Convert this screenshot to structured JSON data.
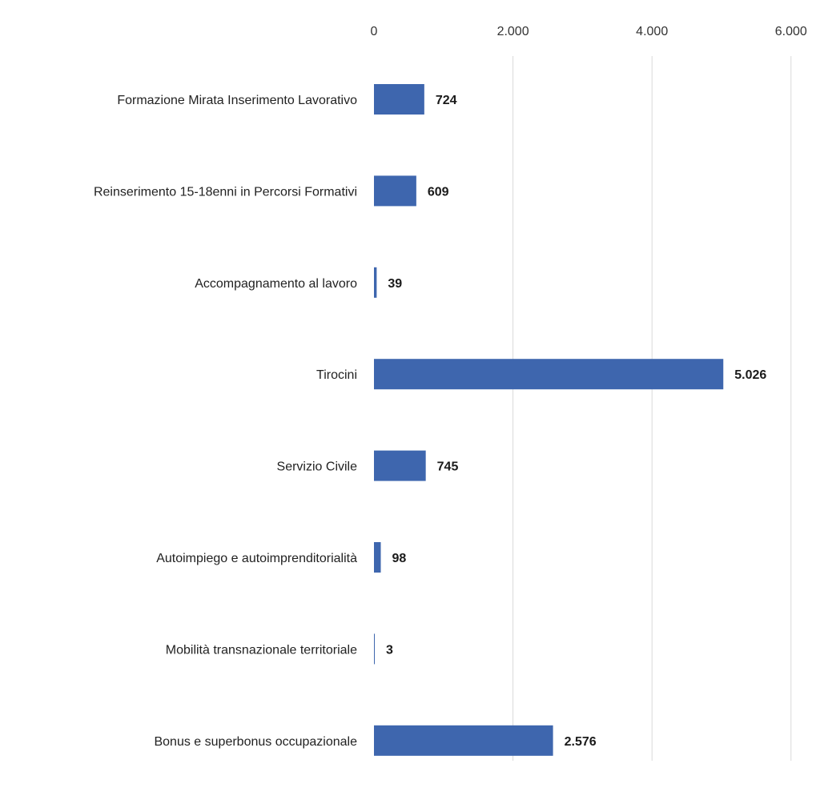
{
  "chart_data": {
    "type": "bar",
    "orientation": "horizontal",
    "categories": [
      "Formazione Mirata Inserimento Lavorativo",
      "Reinserimento 15-18enni in Percorsi Formativi",
      "Accompagnamento al lavoro",
      "Tirocini",
      "Servizio Civile",
      "Autoimpiego e autoimprenditorialità",
      "Mobilità transnazionale territoriale",
      "Bonus e superbonus occupazionale"
    ],
    "values": [
      724,
      609,
      39,
      5026,
      745,
      98,
      3,
      2576
    ],
    "data_labels": [
      "724",
      "609",
      "39",
      "5.026",
      "745",
      "98",
      "3",
      "2.576"
    ],
    "xlim": [
      0,
      6000
    ],
    "x_ticks": [
      0,
      2000,
      4000,
      6000
    ],
    "x_tick_labels": [
      "0",
      "2.000",
      "4.000",
      "6.000"
    ],
    "x_axis_position": "top",
    "grid": true,
    "legend": "none",
    "title": "",
    "xlabel": "",
    "ylabel": "",
    "colors": {
      "bar": "#3E66AE",
      "grid": "#D9D9D9",
      "text": "#222222"
    }
  }
}
